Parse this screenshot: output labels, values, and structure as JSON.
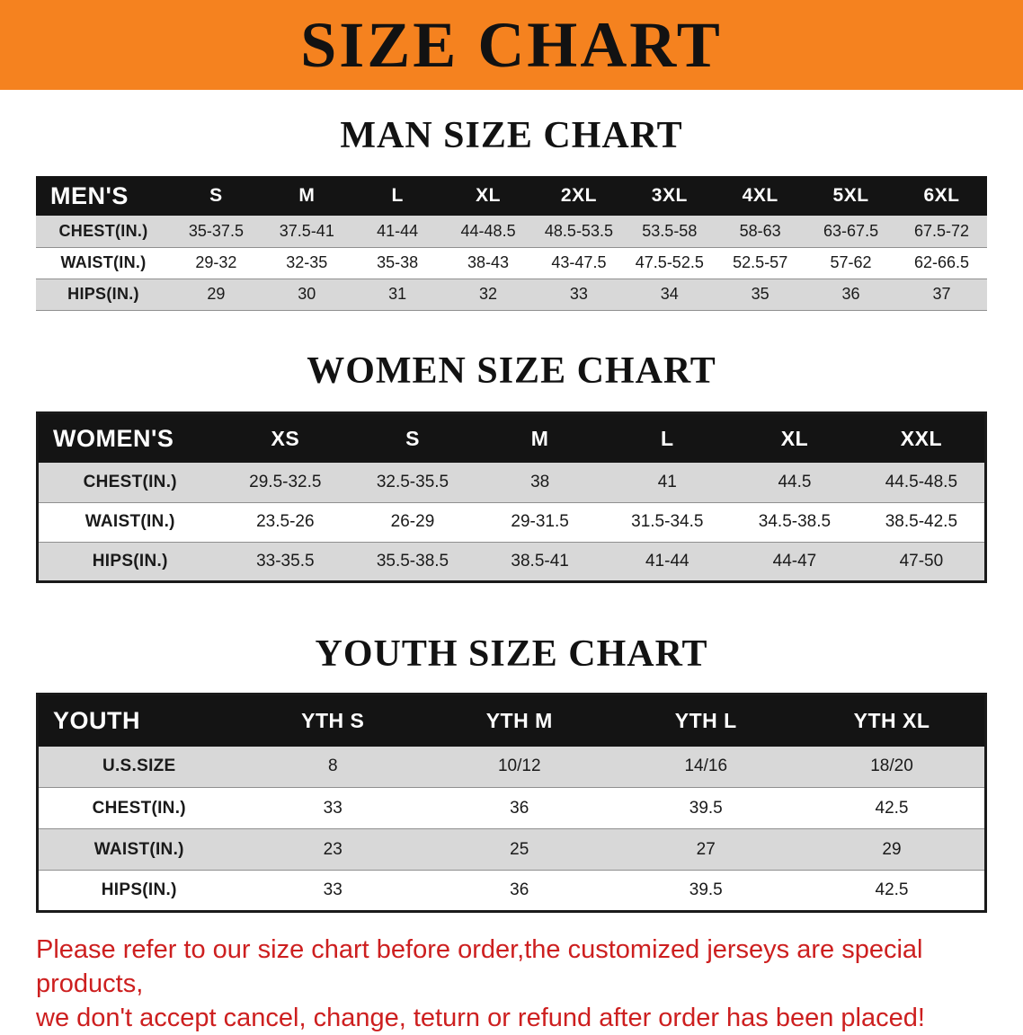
{
  "banner": {
    "title": "SIZE CHART"
  },
  "sections": [
    {
      "heading": "MAN SIZE CHART"
    },
    {
      "heading": "WOMEN SIZE CHART"
    },
    {
      "heading": "YOUTH SIZE CHART"
    }
  ],
  "tables": [
    {
      "name": "mens",
      "header": [
        "MEN'S",
        "S",
        "M",
        "L",
        "XL",
        "2XL",
        "3XL",
        "4XL",
        "5XL",
        "6XL"
      ],
      "rows": [
        {
          "label": "CHEST(IN.)",
          "values": [
            "35-37.5",
            "37.5-41",
            "41-44",
            "44-48.5",
            "48.5-53.5",
            "53.5-58",
            "58-63",
            "63-67.5",
            "67.5-72"
          ]
        },
        {
          "label": "WAIST(IN.)",
          "values": [
            "29-32",
            "32-35",
            "35-38",
            "38-43",
            "43-47.5",
            "47.5-52.5",
            "52.5-57",
            "57-62",
            "62-66.5"
          ]
        },
        {
          "label": "HIPS(IN.)",
          "values": [
            "29",
            "30",
            "31",
            "32",
            "33",
            "34",
            "35",
            "36",
            "37"
          ]
        }
      ]
    },
    {
      "name": "womens",
      "header": [
        "WOMEN'S",
        "XS",
        "S",
        "M",
        "L",
        "XL",
        "XXL"
      ],
      "rows": [
        {
          "label": "CHEST(IN.)",
          "values": [
            "29.5-32.5",
            "32.5-35.5",
            "38",
            "41",
            "44.5",
            "44.5-48.5"
          ]
        },
        {
          "label": "WAIST(IN.)",
          "values": [
            "23.5-26",
            "26-29",
            "29-31.5",
            "31.5-34.5",
            "34.5-38.5",
            "38.5-42.5"
          ]
        },
        {
          "label": "HIPS(IN.)",
          "values": [
            "33-35.5",
            "35.5-38.5",
            "38.5-41",
            "41-44",
            "44-47",
            "47-50"
          ]
        }
      ]
    },
    {
      "name": "youth",
      "header": [
        "YOUTH",
        "YTH S",
        "YTH M",
        "YTH L",
        "YTH XL"
      ],
      "rows": [
        {
          "label": "U.S.SIZE",
          "values": [
            "8",
            "10/12",
            "14/16",
            "18/20"
          ]
        },
        {
          "label": "CHEST(IN.)",
          "values": [
            "33",
            "36",
            "39.5",
            "42.5"
          ]
        },
        {
          "label": "WAIST(IN.)",
          "values": [
            "23",
            "25",
            "27",
            "29"
          ]
        },
        {
          "label": "HIPS(IN.)",
          "values": [
            "33",
            "36",
            "39.5",
            "42.5"
          ]
        }
      ]
    }
  ],
  "disclaimer": {
    "line1": "Please refer to our size chart before order,the customized jerseys are special products,",
    "line2": "we don't accept cancel, change, teturn or refund after order has been placed!"
  },
  "colors": {
    "banner-bg": "#f5821f",
    "table-header-bg": "#141414",
    "row-alt-bg": "#d8d8d8",
    "row-line": "#8f8f8f",
    "table-border": "#1a1a1a",
    "heading-color": "#121212",
    "disclaimer-color": "#cd1f1f"
  }
}
